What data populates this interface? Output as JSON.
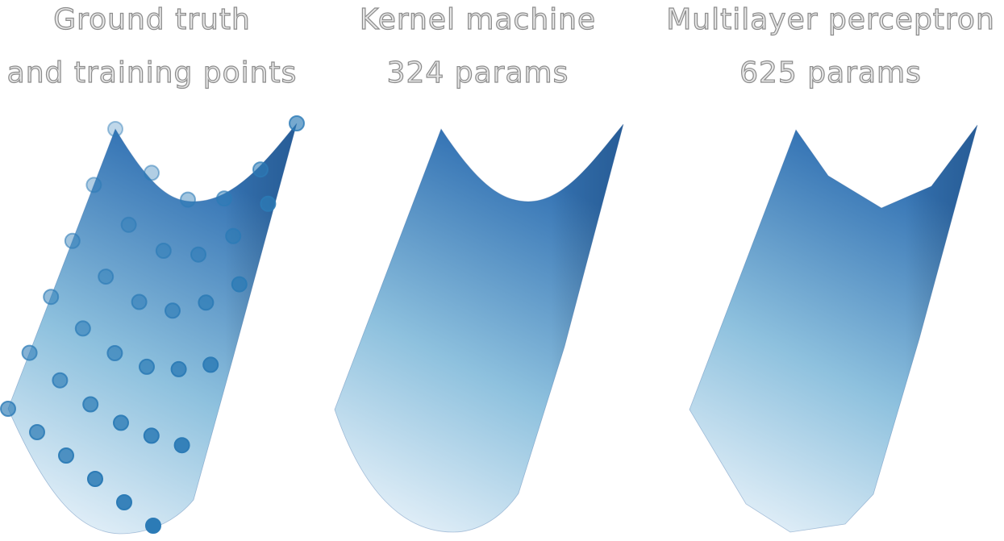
{
  "panels": [
    {
      "title_line1": "Ground truth",
      "title_line2": "and training points"
    },
    {
      "title_line1": "Kernel machine",
      "title_line2": "324 params"
    },
    {
      "title_line1": "Multilayer perceptron",
      "title_line2": "625 params"
    }
  ],
  "colors": {
    "surface_low": "#f3f8fd",
    "surface_mid": "#8ec1de",
    "surface_high": "#3473b4",
    "surface_edge": "#2a5f9e",
    "point": "#2c7bb6",
    "title_fill": "#e6e6e6",
    "title_stroke": "#8c8c8c"
  },
  "chart_data": [
    {
      "type": "surface-3d",
      "title": "Ground truth and training points",
      "surface": "smooth curved sheet, U-shaped in depth, rising toward the back-right corner",
      "training_points": "6 x 6 grid on the surface",
      "points_grid_rows": 6,
      "points_grid_cols": 6
    },
    {
      "type": "surface-3d",
      "title": "Kernel machine",
      "subtitle": "324 params",
      "surface": "smooth approximation matching the ground truth"
    },
    {
      "type": "surface-3d",
      "title": "Multilayer perceptron",
      "subtitle": "625 params",
      "surface": "piecewise-linear approximation with visible kinks"
    }
  ]
}
